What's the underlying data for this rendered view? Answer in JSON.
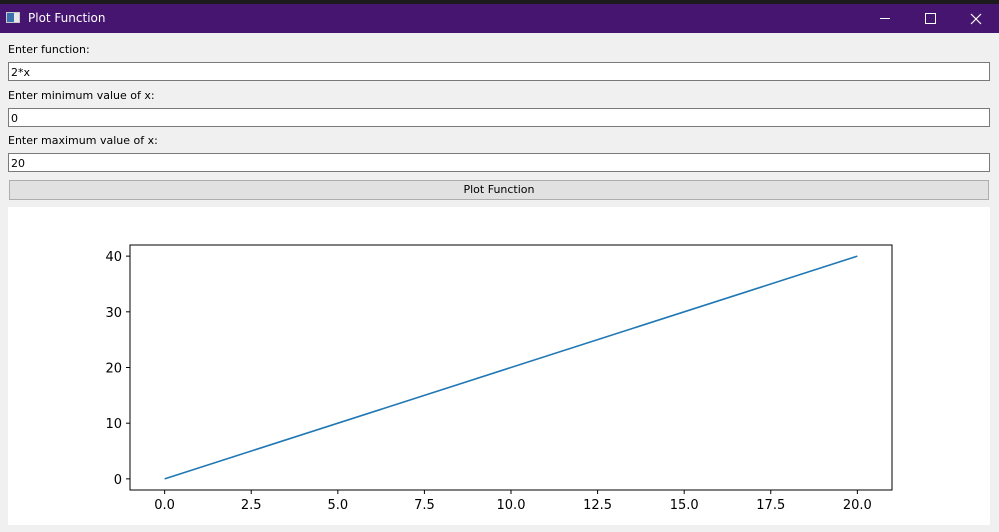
{
  "window": {
    "title": "Plot Function",
    "controls": [
      "minimize",
      "maximize",
      "close"
    ]
  },
  "form": {
    "function_label": "Enter function:",
    "function_value": "2*x",
    "min_label": "Enter minimum value of x:",
    "min_value": "0",
    "max_label": "Enter maximum value of x:",
    "max_value": "20",
    "plot_button_label": "Plot Function"
  },
  "colors": {
    "titlebar": "#45156f",
    "series": "#1f77b4"
  },
  "chart_data": {
    "type": "line",
    "title": "",
    "xlabel": "",
    "ylabel": "",
    "xlim": [
      -1.0,
      21.0
    ],
    "ylim": [
      -2.0,
      42.0
    ],
    "xticks": [
      0.0,
      2.5,
      5.0,
      7.5,
      10.0,
      12.5,
      15.0,
      17.5,
      20.0
    ],
    "xtick_labels": [
      "0.0",
      "2.5",
      "5.0",
      "7.5",
      "10.0",
      "12.5",
      "15.0",
      "17.5",
      "20.0"
    ],
    "yticks": [
      0,
      10,
      20,
      30,
      40
    ],
    "ytick_labels": [
      "0",
      "10",
      "20",
      "30",
      "40"
    ],
    "grid": false,
    "series": [
      {
        "x": [
          0,
          20
        ],
        "y": [
          0,
          40
        ]
      }
    ]
  }
}
